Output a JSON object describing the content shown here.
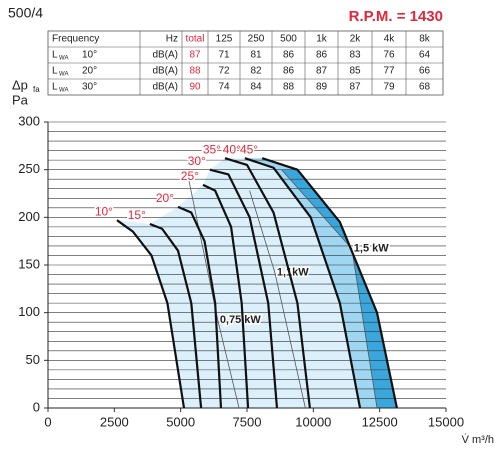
{
  "header": {
    "model": "500/4",
    "rpm": "R.P.M. = 1430"
  },
  "table": {
    "columns": [
      "Frequency",
      "Hz",
      "total",
      "125",
      "250",
      "500",
      "1k",
      "2k",
      "4k",
      "8k"
    ],
    "rows": [
      {
        "label": "L",
        "sub": "WA",
        "angle": "10°",
        "unit": "dB(A)",
        "total": 87,
        "bands": [
          71,
          81,
          86,
          86,
          83,
          76,
          64
        ]
      },
      {
        "label": "L",
        "sub": "WA",
        "angle": "20°",
        "unit": "dB(A)",
        "total": 88,
        "bands": [
          72,
          82,
          86,
          87,
          85,
          77,
          66
        ]
      },
      {
        "label": "L",
        "sub": "WA",
        "angle": "30°",
        "unit": "dB(A)",
        "total": 90,
        "bands": [
          74,
          84,
          88,
          89,
          87,
          79,
          68
        ]
      }
    ]
  },
  "chart_data": {
    "type": "line",
    "ylabel": {
      "main": "Δp",
      "sub": "fa",
      "unit": "Pa"
    },
    "xlabel": "V̇ m³/h",
    "xlim": [
      0,
      15000
    ],
    "xticks": [
      0,
      2500,
      5000,
      7500,
      10000,
      12500,
      15000
    ],
    "ylim": [
      0,
      300
    ],
    "yticks": [
      0,
      50,
      100,
      150,
      200,
      250,
      300
    ],
    "grid": true,
    "minor_grid_step": 10,
    "line_color": "#111111",
    "label_color": "#e3263a",
    "fill_colors": [
      "#dcf0fb",
      "#9fd6f1",
      "#3aa7dc"
    ],
    "series": [
      {
        "name": "10°",
        "x": [
          2600,
          3200,
          3900,
          4500,
          5125
        ],
        "y": [
          197,
          185,
          160,
          110,
          0
        ]
      },
      {
        "name": "15°",
        "x": [
          3840,
          4300,
          4900,
          5400,
          5770
        ],
        "y": [
          193,
          188,
          165,
          110,
          0
        ]
      },
      {
        "name": "20°",
        "x": [
          4900,
          5400,
          5900,
          6300,
          6520
        ],
        "y": [
          211,
          205,
          175,
          110,
          0
        ]
      },
      {
        "name": "25°",
        "x": [
          5840,
          6300,
          6900,
          7300,
          7540
        ],
        "y": [
          234,
          228,
          190,
          110,
          0
        ]
      },
      {
        "name": "30°",
        "x": [
          6100,
          6800,
          7600,
          8300,
          8630
        ],
        "y": [
          250,
          245,
          200,
          110,
          0
        ]
      },
      {
        "name": "35°",
        "x": [
          6670,
          7500,
          8500,
          9400,
          9870
        ],
        "y": [
          262,
          255,
          205,
          110,
          0
        ]
      },
      {
        "name": "40°",
        "x": [
          7420,
          8500,
          9900,
          11000,
          11760
        ],
        "y": [
          262,
          252,
          200,
          110,
          0
        ]
      },
      {
        "name": "45°",
        "x": [
          8070,
          9400,
          11000,
          12400,
          13150
        ],
        "y": [
          262,
          250,
          195,
          100,
          0
        ]
      }
    ],
    "power_lines": [
      {
        "name": "0,75 kW",
        "x": [
          5300,
          6400,
          7200
        ],
        "y": [
          240,
          92,
          0
        ]
      },
      {
        "name": "1,1kW",
        "x": [
          7600,
          8550,
          9700
        ],
        "y": [
          228,
          142,
          0
        ]
      },
      {
        "name": "1,5 kW",
        "x": [
          8800,
          11450,
          12400
        ],
        "y": [
          250,
          167,
          0
        ]
      }
    ]
  }
}
